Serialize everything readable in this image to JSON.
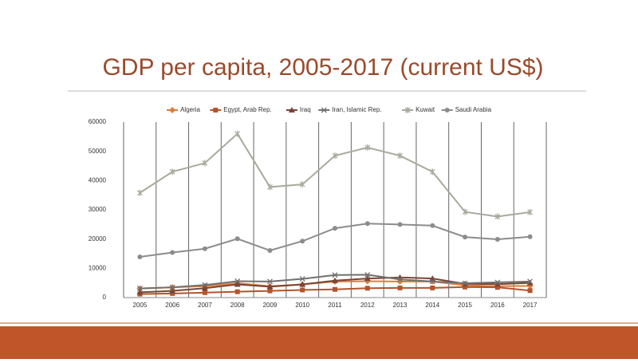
{
  "chart_data": {
    "type": "line",
    "title": "GDP per capita, 2005-2017 (current US$)",
    "categories": [
      "2005",
      "2006",
      "2007",
      "2008",
      "2009",
      "2010",
      "2011",
      "2012",
      "2013",
      "2014",
      "2015",
      "2016",
      "2017"
    ],
    "series": [
      {
        "name": "Algeria",
        "color": "#e07b39",
        "marker": "diamond",
        "values": [
          3100,
          3500,
          3900,
          4900,
          3900,
          4500,
          5500,
          5600,
          5500,
          5500,
          4200,
          3900,
          4000
        ]
      },
      {
        "name": "Egypt, Arab Rep.",
        "color": "#b5542a",
        "marker": "square",
        "values": [
          1200,
          1400,
          1700,
          2000,
          2300,
          2600,
          2800,
          3200,
          3300,
          3300,
          3600,
          3500,
          2400
        ]
      },
      {
        "name": "Iraq",
        "color": "#7a4535",
        "marker": "triangle",
        "values": [
          1800,
          2300,
          3200,
          4500,
          3700,
          4500,
          5800,
          6500,
          6900,
          6500,
          4700,
          4600,
          5000
        ]
      },
      {
        "name": "Iran, Islamic Rep.",
        "color": "#707070",
        "marker": "x",
        "values": [
          3100,
          3500,
          4300,
          5600,
          5500,
          6400,
          7700,
          7800,
          6200,
          5500,
          4900,
          5200,
          5500
        ]
      },
      {
        "name": "Kuwait",
        "color": "#a9aa9c",
        "marker": "star",
        "values": [
          35800,
          43000,
          46000,
          56000,
          37800,
          38700,
          48500,
          51300,
          48500,
          43000,
          29300,
          27700,
          29200
        ]
      },
      {
        "name": "Saudi Arabia",
        "color": "#8c8c8c",
        "marker": "circle",
        "values": [
          13900,
          15400,
          16700,
          20100,
          16100,
          19300,
          23700,
          25300,
          25000,
          24600,
          20700,
          19900,
          20800
        ]
      }
    ],
    "ylim": [
      0,
      60000
    ],
    "yticks": [
      0,
      10000,
      20000,
      30000,
      40000,
      50000,
      60000
    ],
    "legend": "top"
  }
}
